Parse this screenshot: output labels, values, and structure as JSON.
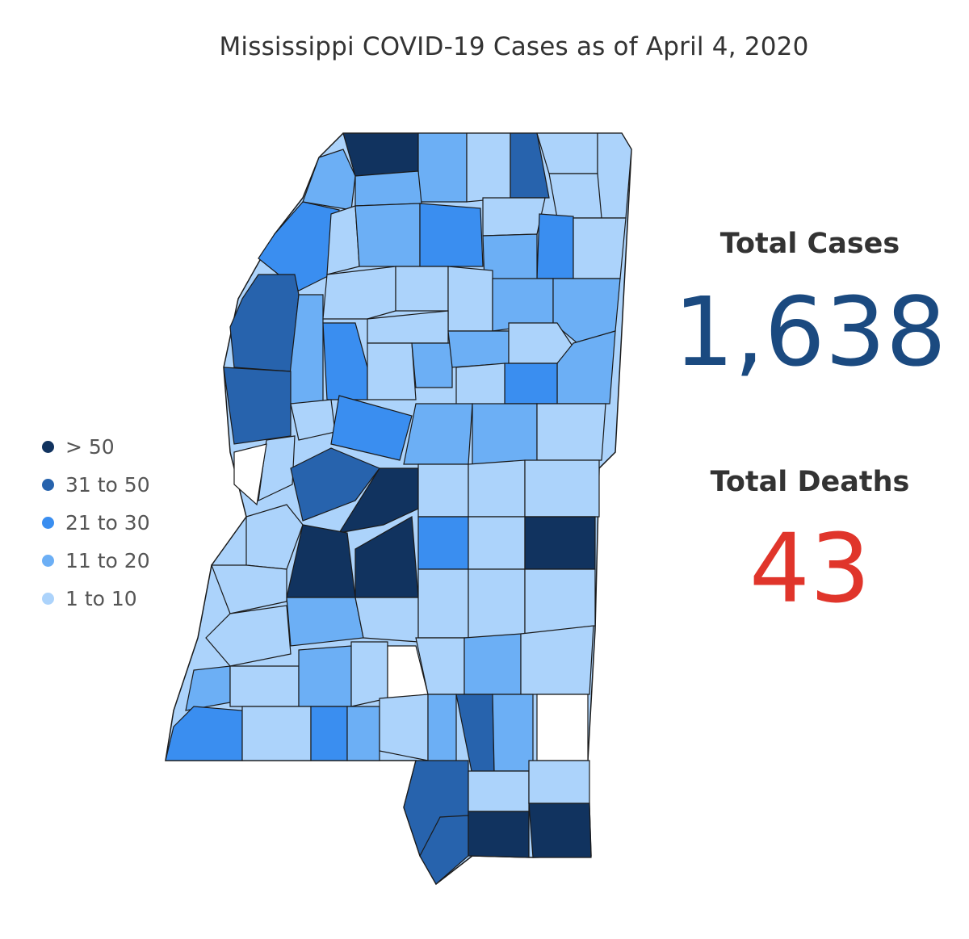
{
  "title": "Mississippi COVID-19 Cases as of April 4, 2020",
  "legend": [
    {
      "label": "> 50",
      "color": "#11335f"
    },
    {
      "label": "31 to 50",
      "color": "#2763ad"
    },
    {
      "label": "21 to 30",
      "color": "#3a8ef0"
    },
    {
      "label": "11 to 20",
      "color": "#6caff5"
    },
    {
      "label": "1 to 10",
      "color": "#acd3fb"
    }
  ],
  "no_data_color": "#ffffff",
  "stats": {
    "cases_label": "Total Cases",
    "cases_value": "1,638",
    "cases_color": "#1b4a80",
    "deaths_label": "Total Deaths",
    "deaths_value": "43",
    "deaths_color": "#e0352b"
  }
}
